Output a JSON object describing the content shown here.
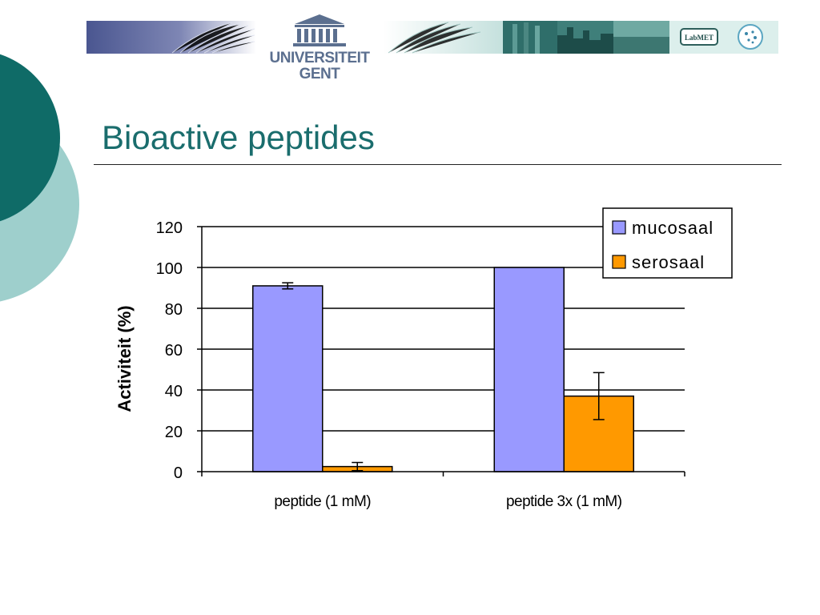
{
  "colors": {
    "teal_dark": "#0f6b67",
    "teal_light": "#9ecfcc",
    "title": "#1a6d6d",
    "university_text": "#5b6f8f",
    "mucosaal": "#9999ff",
    "serosaal": "#ff9900"
  },
  "header": {
    "university_line1": "UNIVERSITEIT",
    "university_line2": "GENT",
    "labmet_logo_text": "LabMET"
  },
  "slide": {
    "title": "Bioactive peptides"
  },
  "chart_data": {
    "type": "bar",
    "categories": [
      "peptide (1 mM)",
      "peptide 3x (1 mM)"
    ],
    "series": [
      {
        "name": "mucosaal",
        "values": [
          91,
          100
        ],
        "errors": [
          1.5,
          0
        ]
      },
      {
        "name": "serosaal",
        "values": [
          2.5,
          37
        ],
        "errors": [
          2,
          11.5
        ]
      }
    ],
    "ylabel": "Activiteit (%)",
    "ylim": [
      0,
      120
    ],
    "yticks": [
      0,
      20,
      40,
      60,
      80,
      100,
      120
    ],
    "grid": true,
    "legend_position": "top-right"
  }
}
